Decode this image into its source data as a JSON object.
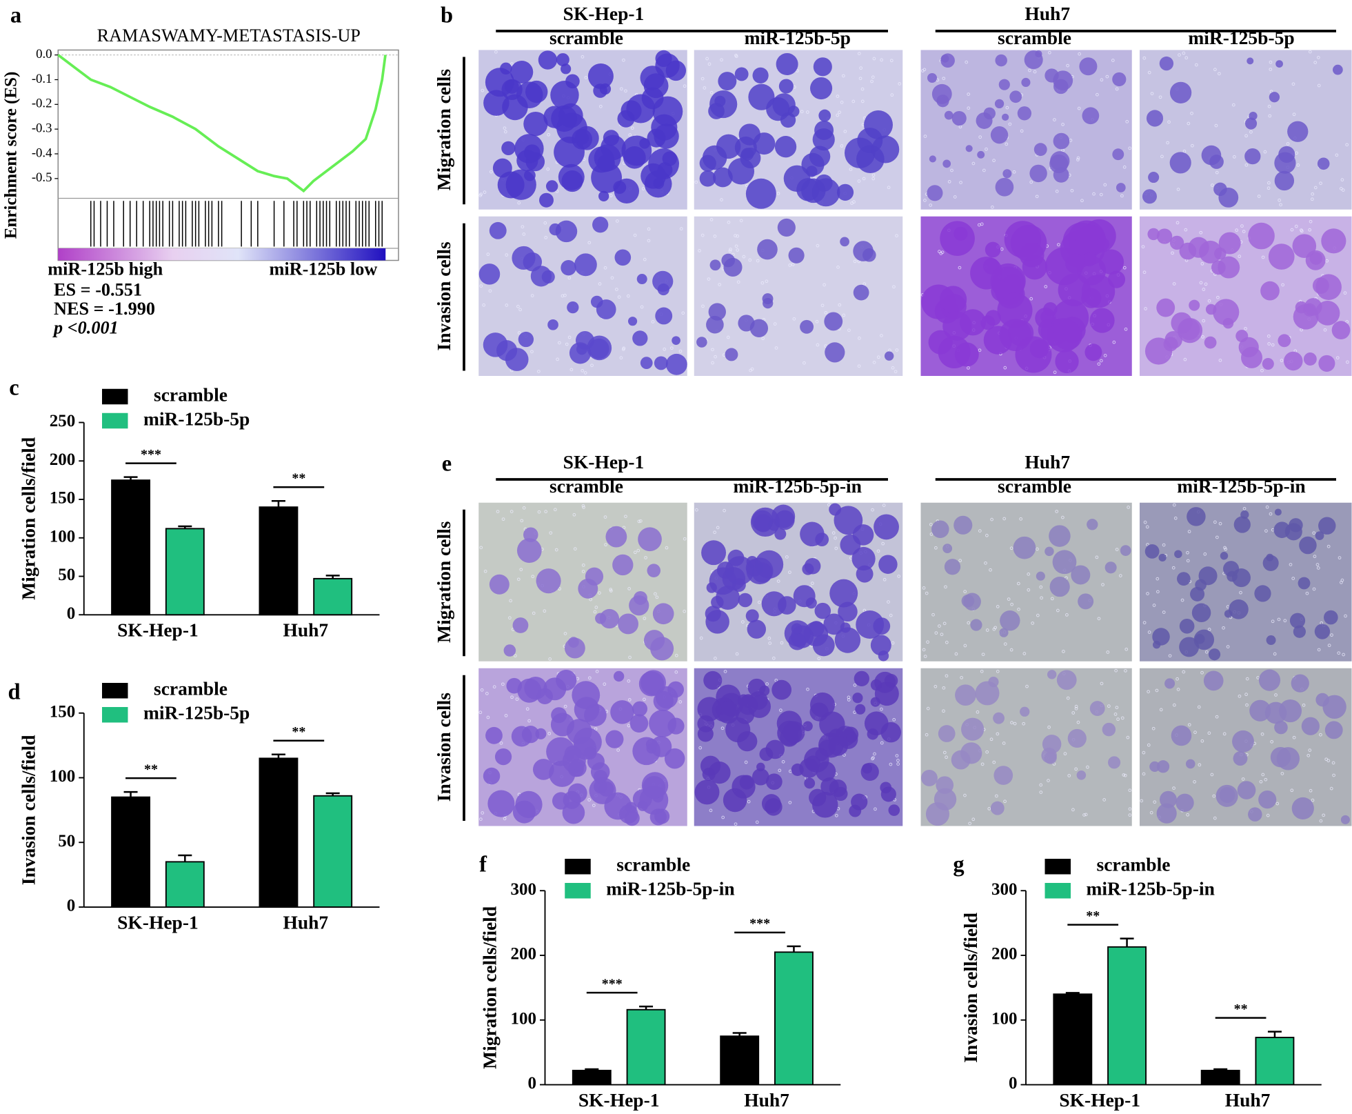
{
  "chart_data": [
    {
      "type": "line",
      "panel": "a",
      "title": "RAMASWAMY-METASTASIS-UP",
      "ylabel": "Enrichment score (ES)",
      "x": [
        0,
        5,
        10,
        16,
        22,
        28,
        35,
        42,
        49,
        55,
        61,
        66,
        70,
        75,
        78,
        82,
        86,
        90,
        94,
        97,
        99,
        100
      ],
      "series": [
        {
          "color": "#66ee55",
          "values": [
            0,
            -0.05,
            -0.1,
            -0.13,
            -0.17,
            -0.21,
            -0.25,
            -0.3,
            -0.37,
            -0.42,
            -0.47,
            -0.49,
            -0.5,
            -0.55,
            -0.51,
            -0.47,
            -0.43,
            -0.39,
            -0.34,
            -0.22,
            -0.1,
            0
          ]
        }
      ],
      "xlim": [
        0,
        104
      ],
      "ylim": [
        -0.58,
        0.02
      ],
      "yticks": [
        {
          "value": 0,
          "label": "0.0"
        },
        -0.1,
        -0.2,
        -0.3,
        -0.4,
        -0.5
      ],
      "hits": [
        10,
        11,
        13,
        15,
        17,
        20,
        22,
        24,
        26,
        28,
        29,
        30,
        31,
        32,
        34,
        35,
        37,
        38,
        39,
        41,
        42,
        43,
        45,
        46,
        47,
        49,
        50,
        56,
        59,
        61,
        66,
        69,
        72,
        73,
        75,
        76,
        77,
        79,
        80,
        81,
        82,
        83,
        85,
        86,
        87,
        88,
        89,
        91,
        92,
        93,
        94,
        95,
        97,
        98,
        99
      ],
      "annotations": [
        "miR-125b high",
        "miR-125b low",
        "ES = -0.551",
        "NES = -1.990",
        "p <0.001"
      ]
    },
    {
      "type": "bar",
      "panel": "c",
      "ylabel": "Migration cells/field",
      "categories": [
        "SK-Hep-1",
        "Huh7"
      ],
      "series": [
        {
          "name": "scramble",
          "color": "#000000",
          "values": [
            175,
            140
          ],
          "errors": [
            4,
            8
          ]
        },
        {
          "name": "miR-125b-5p",
          "color": "#20bf7f",
          "values": [
            112,
            47
          ],
          "errors": [
            3,
            4
          ]
        }
      ],
      "ylim": [
        0,
        250
      ],
      "yticks": [
        0,
        50,
        100,
        150,
        200,
        250
      ],
      "annotations": [
        "***",
        "**"
      ]
    },
    {
      "type": "bar",
      "panel": "d",
      "ylabel": "Invasion cells/field",
      "categories": [
        "SK-Hep-1",
        "Huh7"
      ],
      "series": [
        {
          "name": "scramble",
          "color": "#000000",
          "values": [
            85,
            115
          ],
          "errors": [
            4,
            3
          ]
        },
        {
          "name": "miR-125b-5p",
          "color": "#20bf7f",
          "values": [
            35,
            86
          ],
          "errors": [
            5,
            2
          ]
        }
      ],
      "ylim": [
        0,
        150
      ],
      "yticks": [
        0,
        50,
        100,
        150
      ],
      "annotations": [
        "**",
        "**"
      ]
    },
    {
      "type": "bar",
      "panel": "f",
      "ylabel": "Migration cells/field",
      "categories": [
        "SK-Hep-1",
        "Huh7"
      ],
      "series": [
        {
          "name": "scramble",
          "color": "#000000",
          "values": [
            22,
            75
          ],
          "errors": [
            2,
            5
          ]
        },
        {
          "name": "miR-125b-5p-in",
          "color": "#20bf7f",
          "values": [
            116,
            205
          ],
          "errors": [
            5,
            9
          ]
        }
      ],
      "ylim": [
        0,
        300
      ],
      "yticks": [
        0,
        100,
        200,
        300
      ],
      "annotations": [
        "***",
        "***"
      ]
    },
    {
      "type": "bar",
      "panel": "g",
      "ylabel": "Invasion cells/field",
      "categories": [
        "SK-Hep-1",
        "Huh7"
      ],
      "series": [
        {
          "name": "scramble",
          "color": "#000000",
          "values": [
            140,
            22
          ],
          "errors": [
            2,
            2
          ]
        },
        {
          "name": "miR-125b-5p-in",
          "color": "#20bf7f",
          "values": [
            213,
            73
          ],
          "errors": [
            13,
            9
          ]
        }
      ],
      "ylim": [
        0,
        300
      ],
      "yticks": [
        0,
        100,
        200,
        300
      ],
      "annotations": [
        "**",
        "**"
      ]
    }
  ],
  "panel_b": {
    "label": "b",
    "groups": [
      "SK-Hep-1",
      "Huh7"
    ],
    "columns": [
      "scramble",
      "miR-125b-5p",
      "scramble",
      "miR-125b-5p"
    ],
    "rows": [
      "Migration cells",
      "Invasion cells"
    ]
  },
  "panel_e": {
    "label": "e",
    "groups": [
      "SK-Hep-1",
      "Huh7"
    ],
    "columns": [
      "scramble",
      "miR-125b-5p-in",
      "scramble",
      "miR-125b-5p-in"
    ],
    "rows": [
      "Migration cells",
      "Invasion cells"
    ]
  }
}
